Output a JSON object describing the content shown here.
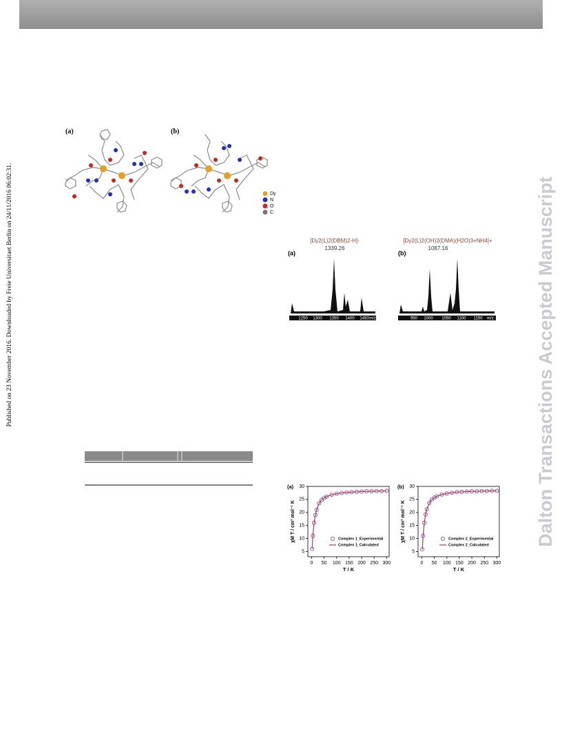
{
  "side_note": "Published on 23 November 2016. Downloaded by Freie Universitaet Berlin on 24/11/2016 06:02:31.",
  "watermark": "Dalton Transactions Accepted Manuscript",
  "figure_structures": {
    "panels": [
      "(a)",
      "(b)"
    ],
    "legend": [
      "Dy",
      "N",
      "O",
      "C"
    ]
  },
  "figure_spectra": {
    "panels": [
      {
        "label": "(a)",
        "formula": "[Dy2(L)2(DBM)2-H]-",
        "peak": "1339.26",
        "ticks": [
          "1250",
          "1300",
          "1350",
          "1400",
          "1450"
        ],
        "unit": "m/z"
      },
      {
        "label": "(b)",
        "formula": "[Dy2(L)2(OH)2(DMA)(H2O)3+NH4]+",
        "peak": "1087.16",
        "ticks": [
          "950",
          "1000",
          "1050",
          "1100",
          "1150"
        ],
        "unit": "m/z"
      }
    ]
  },
  "chart_data": [
    {
      "type": "scatter",
      "panel": "(a)",
      "x_label": "T / K",
      "y_label": "χM T / cm³ mol⁻¹ K",
      "x": [
        2,
        5,
        10,
        15,
        20,
        30,
        40,
        50,
        60,
        80,
        100,
        120,
        140,
        160,
        180,
        200,
        220,
        240,
        260,
        280,
        300
      ],
      "series": [
        {
          "name": "Complex 1_Experimental",
          "color": "#6a4aa0",
          "style": "markers",
          "values": [
            6,
            11,
            16,
            19,
            21,
            23.5,
            24.8,
            25.6,
            26.1,
            26.8,
            27.2,
            27.5,
            27.7,
            27.8,
            27.9,
            28,
            28.1,
            28.1,
            28.2,
            28.2,
            28.3
          ]
        },
        {
          "name": "Complex 1_Calculated",
          "color": "#c0304a",
          "style": "line",
          "values": [
            6,
            11,
            16,
            19,
            21,
            23.5,
            24.8,
            25.6,
            26.1,
            26.8,
            27.2,
            27.5,
            27.7,
            27.8,
            27.9,
            28,
            28.1,
            28.1,
            28.2,
            28.2,
            28.3
          ]
        }
      ],
      "xlim": [
        -15,
        310
      ],
      "ylim": [
        3,
        30
      ],
      "xticks": [
        0,
        50,
        100,
        150,
        200,
        250,
        300
      ],
      "yticks": [
        5,
        10,
        15,
        20,
        25,
        30
      ]
    },
    {
      "type": "scatter",
      "panel": "(b)",
      "x_label": "T / K",
      "y_label": "χM T / cm³ mol⁻¹ K",
      "x": [
        2,
        5,
        10,
        15,
        20,
        30,
        40,
        50,
        60,
        80,
        100,
        120,
        140,
        160,
        180,
        200,
        220,
        240,
        260,
        280,
        300
      ],
      "series": [
        {
          "name": "Complex 2_Experimental",
          "color": "#6a4aa0",
          "style": "markers",
          "values": [
            5.8,
            11,
            16,
            19.2,
            21.2,
            23.6,
            24.9,
            25.7,
            26.2,
            26.9,
            27.3,
            27.6,
            27.8,
            27.9,
            28,
            28.1,
            28.1,
            28.2,
            28.2,
            28.3,
            28.3
          ]
        },
        {
          "name": "Complex 2_Calculated",
          "color": "#c0304a",
          "style": "line",
          "values": [
            5.8,
            11,
            16,
            19.2,
            21.2,
            23.6,
            24.9,
            25.7,
            26.2,
            26.9,
            27.3,
            27.6,
            27.8,
            27.9,
            28,
            28.1,
            28.1,
            28.2,
            28.2,
            28.3,
            28.3
          ]
        }
      ],
      "xlim": [
        -15,
        310
      ],
      "ylim": [
        3,
        30
      ],
      "xticks": [
        0,
        50,
        100,
        150,
        200,
        250,
        300
      ],
      "yticks": [
        5,
        10,
        15,
        20,
        25,
        30
      ]
    }
  ]
}
